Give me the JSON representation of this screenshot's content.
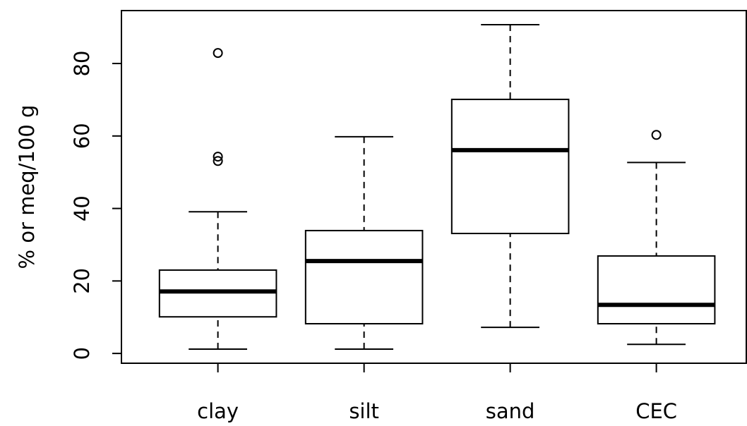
{
  "chart_data": {
    "type": "box",
    "ylabel": "% or meq/100 g",
    "categories": [
      "clay",
      "silt",
      "sand",
      "CEC"
    ],
    "series": [
      {
        "min": 1.2,
        "q1": 10.1,
        "median": 17.1,
        "q3": 23.0,
        "max": 39.1,
        "outliers": [
          82.9,
          54.3,
          53.1
        ]
      },
      {
        "min": 1.2,
        "q1": 8.2,
        "median": 25.5,
        "q3": 33.9,
        "max": 59.8,
        "outliers": []
      },
      {
        "min": 7.2,
        "q1": 33.1,
        "median": 56.1,
        "q3": 70.1,
        "max": 90.7,
        "outliers": []
      },
      {
        "min": 2.5,
        "q1": 8.2,
        "median": 13.4,
        "q3": 26.9,
        "max": 52.7,
        "outliers": [
          60.3
        ]
      }
    ],
    "color": "#000000",
    "ylim": [
      -2.7,
      94.6
    ],
    "yticks": [
      0,
      20,
      40,
      60,
      80
    ]
  }
}
